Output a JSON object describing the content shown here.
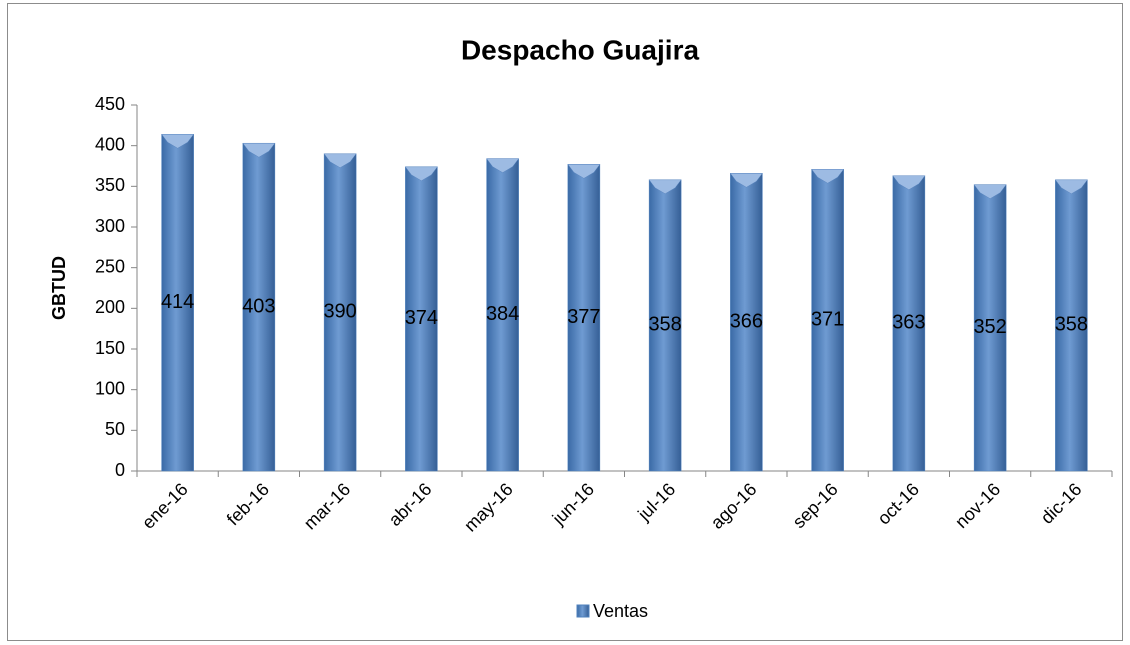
{
  "chart_data": {
    "type": "bar",
    "title": "Despacho Guajira",
    "y_label": "GBTUD",
    "categories": [
      "ene-16",
      "feb-16",
      "mar-16",
      "abr-16",
      "may-16",
      "jun-16",
      "jul-16",
      "ago-16",
      "sep-16",
      "oct-16",
      "nov-16",
      "dic-16"
    ],
    "series": [
      {
        "name": "Ventas",
        "color": "#4f81bd",
        "values": [
          414,
          403,
          390,
          374,
          384,
          377,
          358,
          366,
          371,
          363,
          352,
          358
        ]
      }
    ],
    "ylim": [
      0,
      450
    ],
    "yticks": [
      0,
      50,
      100,
      150,
      200,
      250,
      300,
      350,
      400,
      450
    ],
    "grid": false,
    "legend": "bottom"
  }
}
